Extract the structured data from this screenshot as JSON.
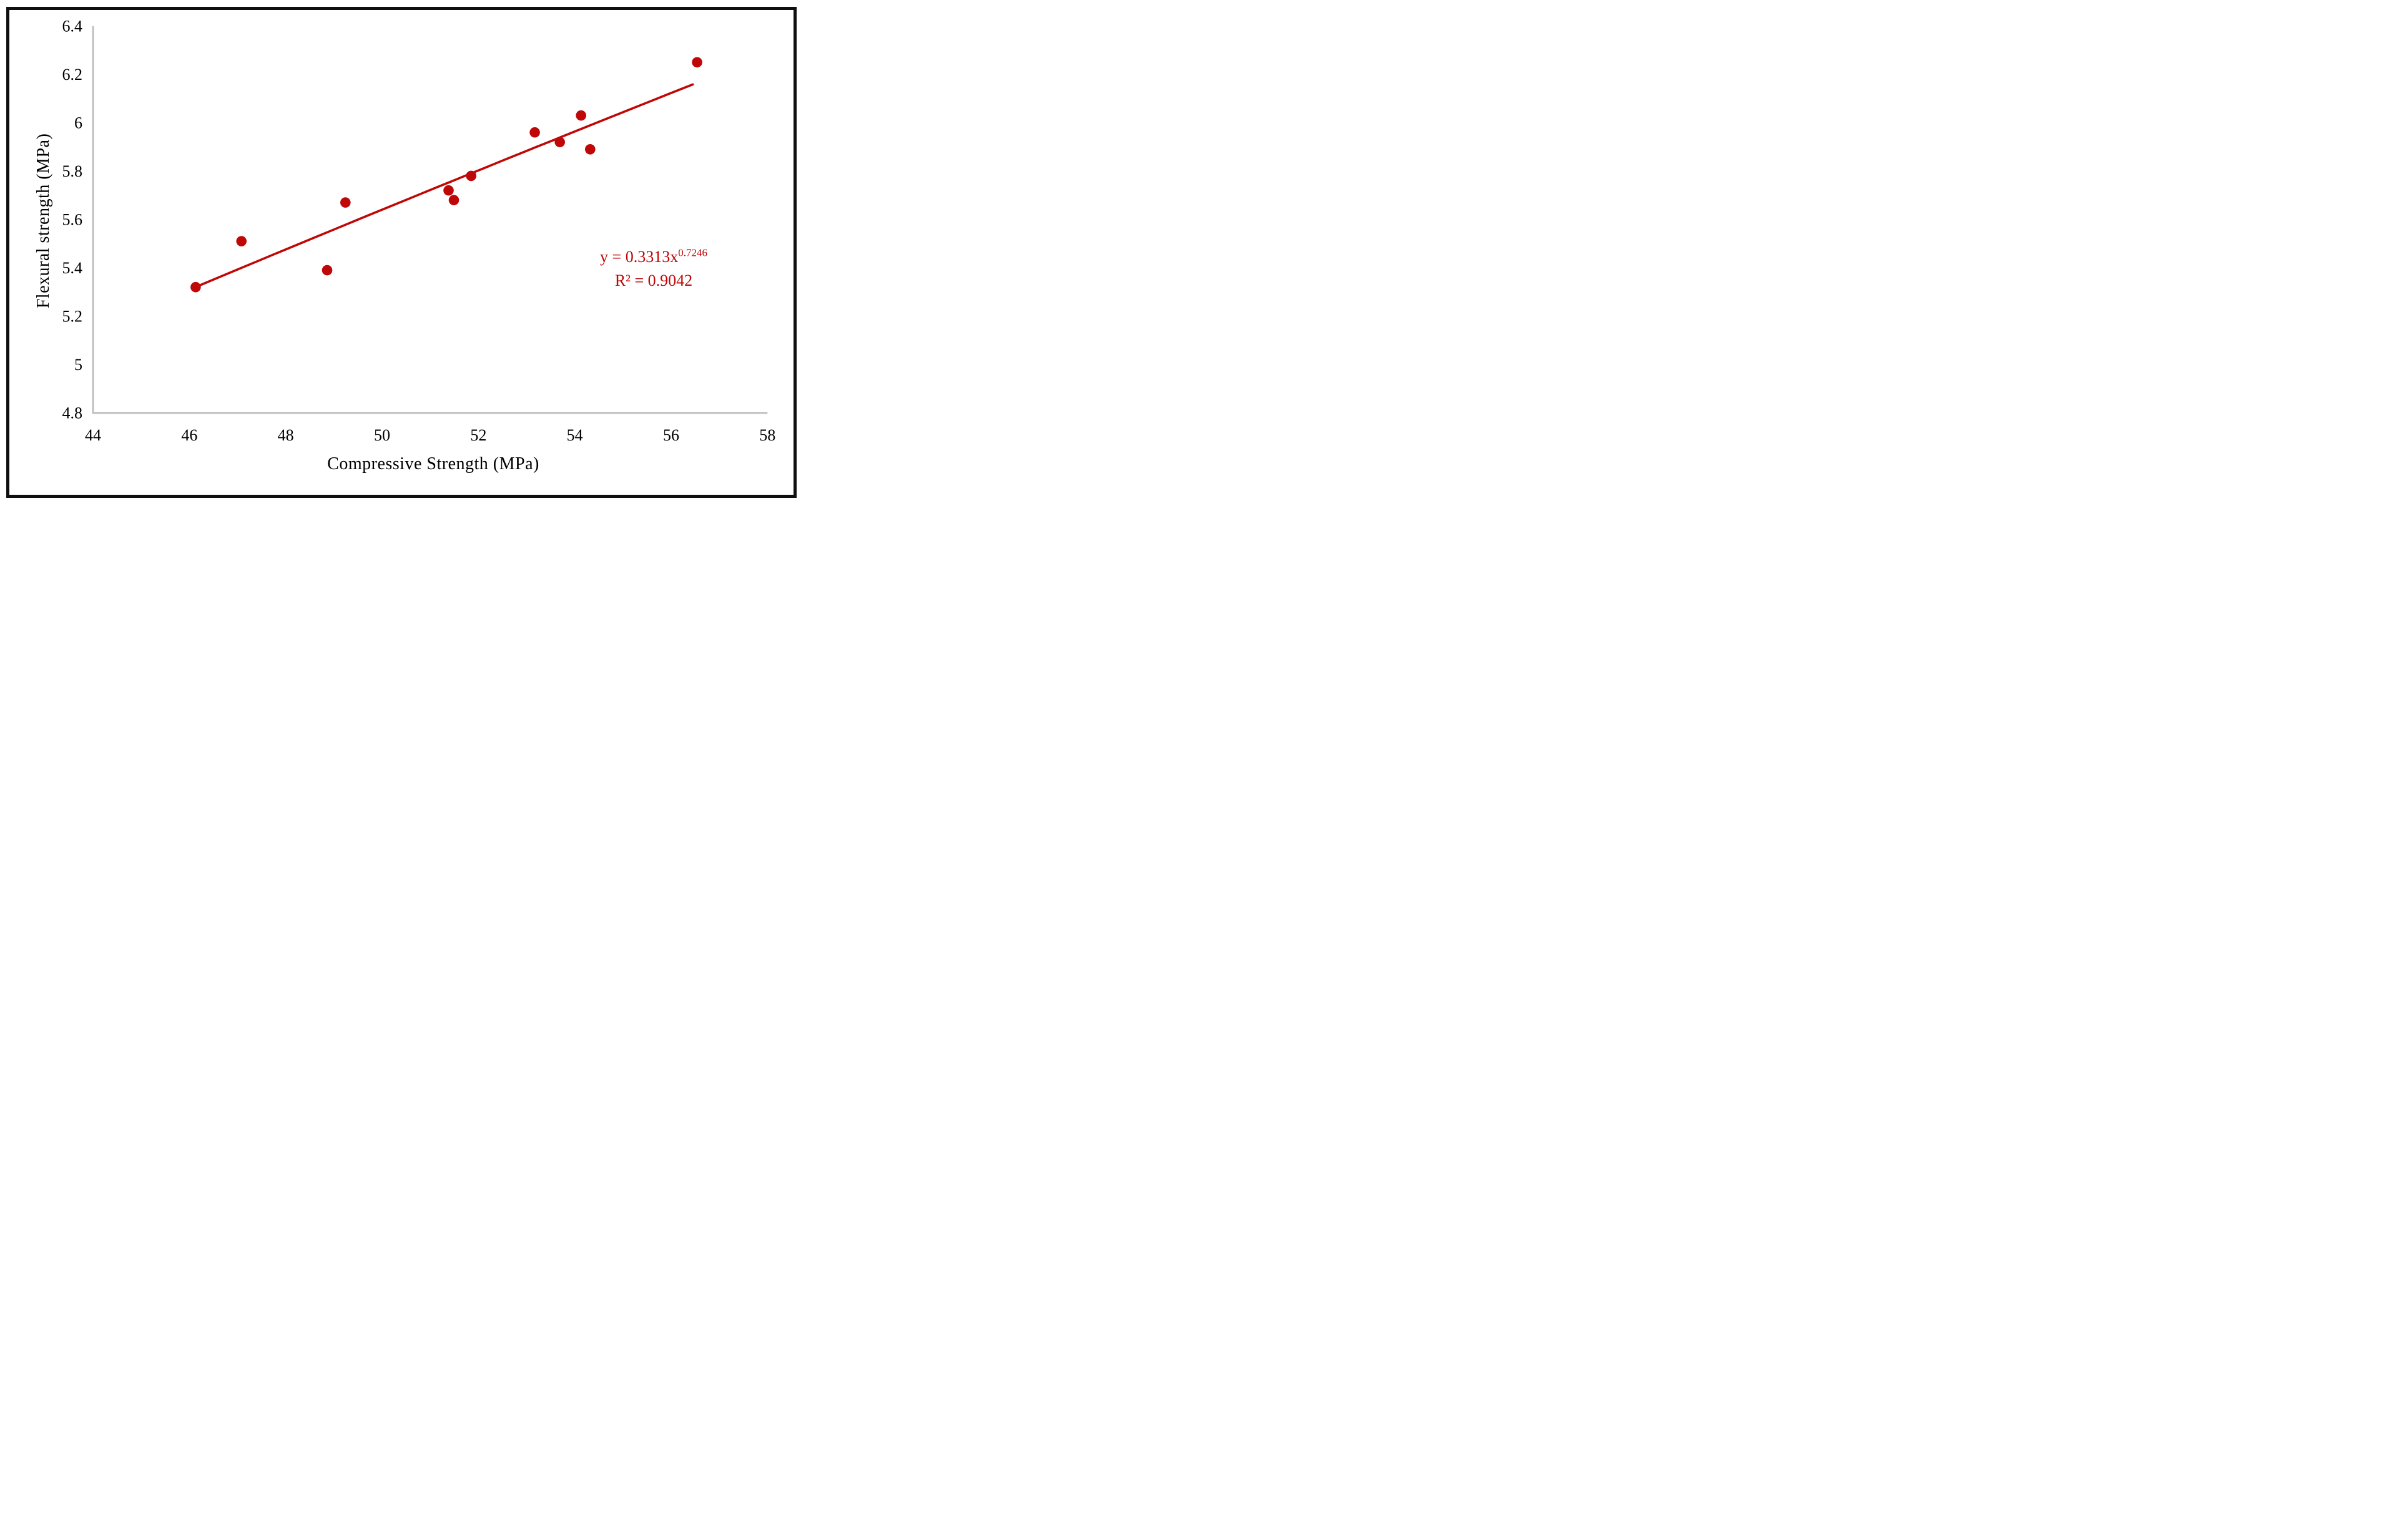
{
  "figure": {
    "background_color": "#ffffff",
    "border_color": "#0f0f0f",
    "axis_line_color": "#bfbfbf",
    "tick_text_color": "#000000"
  },
  "chart_data": {
    "type": "scatter",
    "title": "",
    "xlabel": "Compressive Strength (MPa)",
    "ylabel": "Flexural strength (MPa)",
    "xlim": [
      44,
      58
    ],
    "ylim": [
      4.8,
      6.4
    ],
    "x_ticks": [
      44,
      46,
      48,
      50,
      52,
      54,
      56,
      58
    ],
    "y_ticks": [
      6.4,
      6.2,
      6,
      5.8,
      5.6,
      5.4,
      5.2,
      5,
      4.8
    ],
    "grid": false,
    "legend": false,
    "series": [
      {
        "name": "flexural-vs-compressive",
        "marker_color": "#c00707",
        "points": [
          {
            "x": 46.13,
            "y": 5.32
          },
          {
            "x": 47.08,
            "y": 5.51
          },
          {
            "x": 48.86,
            "y": 5.39
          },
          {
            "x": 49.24,
            "y": 5.67
          },
          {
            "x": 51.38,
            "y": 5.72
          },
          {
            "x": 51.49,
            "y": 5.68
          },
          {
            "x": 51.85,
            "y": 5.78
          },
          {
            "x": 53.17,
            "y": 5.96
          },
          {
            "x": 53.69,
            "y": 5.92
          },
          {
            "x": 54.13,
            "y": 6.03
          },
          {
            "x": 54.32,
            "y": 5.89
          },
          {
            "x": 56.54,
            "y": 6.25
          }
        ]
      }
    ],
    "trendline": {
      "fit_type": "power",
      "coefficient": 0.3313,
      "exponent": 0.7246,
      "x_start": 46.2,
      "x_end": 56.55,
      "color": "#c00707",
      "equation_label": "y = 0.3313x",
      "equation_exponent": "0.7246",
      "r_squared_label": "R² = 0.9042"
    }
  }
}
